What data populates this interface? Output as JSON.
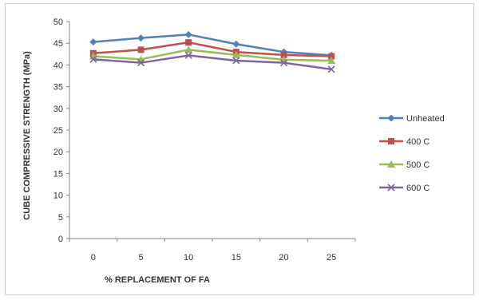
{
  "chart_data": {
    "type": "line",
    "title": "",
    "xlabel": "% REPLACEMENT OF FA",
    "ylabel": "CUBE COMPRESSIVE STRENGTH (MPa)",
    "x": [
      "0",
      "5",
      "10",
      "15",
      "20",
      "25"
    ],
    "ylim": [
      0,
      50
    ],
    "yticks": [
      0,
      5,
      10,
      15,
      20,
      25,
      30,
      35,
      40,
      45,
      50
    ],
    "grid": false,
    "legend_position": "right",
    "series": [
      {
        "name": "Unheated",
        "color": "#4F81BD",
        "marker": "diamond",
        "values": [
          45.3,
          46.2,
          47.0,
          44.8,
          43.0,
          42.2
        ]
      },
      {
        "name": "400 C",
        "color": "#C0504D",
        "marker": "square",
        "values": [
          42.7,
          43.5,
          45.2,
          43.0,
          42.3,
          42.0
        ]
      },
      {
        "name": "500 C",
        "color": "#9BBB59",
        "marker": "triangle",
        "values": [
          42.0,
          41.3,
          43.5,
          42.3,
          41.2,
          41.0
        ]
      },
      {
        "name": "600 C",
        "color": "#8064A2",
        "marker": "x",
        "values": [
          41.3,
          40.5,
          42.2,
          41.0,
          40.5,
          39.0
        ]
      }
    ]
  }
}
